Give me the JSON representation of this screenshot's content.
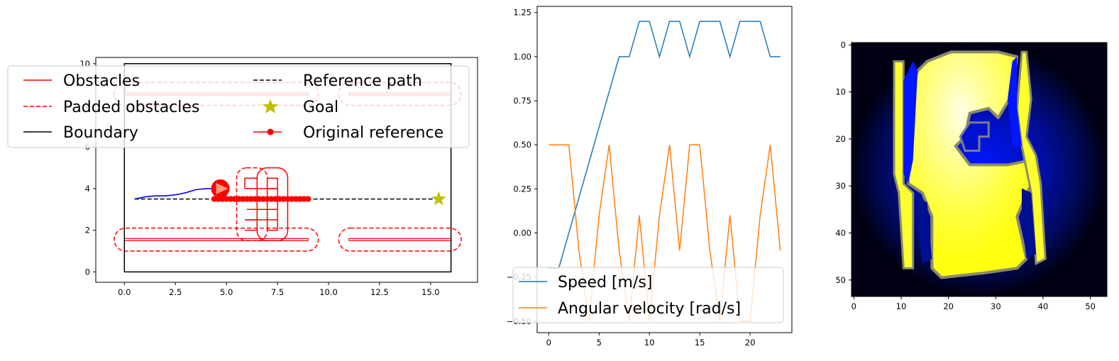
{
  "chart_data": [
    {
      "type": "line",
      "panel": "map",
      "xlim": [
        -1.4,
        17.3
      ],
      "ylim": [
        -0.5,
        10.3
      ],
      "xticks": [
        "0.0",
        "2.5",
        "5.0",
        "7.5",
        "10.0",
        "12.5",
        "15.0"
      ],
      "yticks": [
        "0",
        "2",
        "4",
        "6",
        "8",
        "10"
      ],
      "legend": [
        "Obstacles",
        "Reference path",
        "Padded obstacles",
        "Goal",
        "Boundary",
        "Original reference"
      ],
      "legend_position": "upper-left, overlapping axes",
      "colors": {
        "obstacle": "#ff0000",
        "padded": "#ff0000",
        "boundary": "#000000",
        "reference": "#000000",
        "goal": "#bfbf00",
        "trajectory": "#0000ff",
        "robot": "#ff0000"
      },
      "boundary": {
        "x": [
          0,
          16,
          16,
          0,
          0
        ],
        "y": [
          0,
          0,
          10,
          10,
          0
        ]
      },
      "walls": [
        {
          "x": [
            0,
            9
          ],
          "y": [
            1.5,
            1.6
          ]
        },
        {
          "x": [
            11,
            16
          ],
          "y": [
            1.5,
            1.6
          ]
        },
        {
          "x": [
            0,
            9
          ],
          "y": [
            8.5,
            8.6
          ]
        },
        {
          "x": [
            11,
            16
          ],
          "y": [
            8.5,
            8.6
          ]
        }
      ],
      "padded_walls": [
        {
          "x": [
            -0.5,
            9.5
          ],
          "y": [
            1.0,
            2.1
          ]
        },
        {
          "x": [
            10.5,
            16.5
          ],
          "y": [
            1.0,
            2.1
          ]
        },
        {
          "x": [
            -0.5,
            9.5
          ],
          "y": [
            8.0,
            9.1
          ]
        },
        {
          "x": [
            10.5,
            16.5
          ],
          "y": [
            8.0,
            9.1
          ]
        }
      ],
      "cross_obstacle_lines": [
        [
          [
            5.9,
            4.0
          ],
          [
            6.5,
            4.0
          ],
          [
            6.5,
            4.5
          ],
          [
            5.9,
            4.5
          ],
          [
            5.9,
            4.0
          ]
        ],
        [
          [
            6.5,
            4.0
          ],
          [
            7.5,
            4.0
          ]
        ],
        [
          [
            7.0,
            4.5
          ],
          [
            7.0,
            2.0
          ],
          [
            7.5,
            2.0
          ],
          [
            7.5,
            4.5
          ],
          [
            7.0,
            4.5
          ]
        ],
        [
          [
            5.9,
            2.5
          ],
          [
            7.0,
            2.5
          ]
        ],
        [
          [
            5.9,
            2.0
          ],
          [
            6.5,
            2.0
          ],
          [
            6.5,
            2.5
          ],
          [
            5.9,
            2.5
          ]
        ],
        [
          [
            7.0,
            3.0
          ],
          [
            7.5,
            3.0
          ]
        ],
        [
          [
            7.0,
            3.5
          ],
          [
            7.5,
            3.5
          ]
        ],
        [
          [
            7.0,
            4.0
          ],
          [
            7.5,
            4.0
          ]
        ],
        [
          [
            7.5,
            2.5
          ],
          [
            7.0,
            2.5
          ]
        ],
        [
          [
            6.0,
            3.0
          ],
          [
            7.0,
            3.0
          ]
        ],
        [
          [
            6.0,
            3.5
          ],
          [
            7.0,
            3.5
          ]
        ]
      ],
      "padded_cross": [
        {
          "x": [
            5.5,
            7.0
          ],
          "y": [
            1.5,
            5.0
          ]
        },
        {
          "x": [
            6.5,
            8.0
          ],
          "y": [
            1.5,
            5.0
          ]
        }
      ],
      "reference_path": {
        "x": [
          0.5,
          15.4
        ],
        "y": [
          3.5,
          3.5
        ]
      },
      "original_reference": {
        "x": [
          4.4,
          4.6,
          4.8,
          5.0,
          5.2,
          5.4,
          5.6,
          5.8,
          6.0,
          6.2,
          6.4,
          6.6,
          6.8,
          7.0,
          7.2,
          7.4,
          7.6,
          7.8,
          8.0,
          8.2,
          8.4,
          8.6,
          8.8,
          9.0
        ],
        "y": 3.5
      },
      "goal": {
        "x": 15.4,
        "y": 3.5
      },
      "trajectory": {
        "x": [
          0.5,
          1.0,
          1.5,
          2.0,
          2.5,
          3.0,
          3.5,
          4.0,
          4.5
        ],
        "y": [
          3.5,
          3.6,
          3.65,
          3.65,
          3.7,
          3.8,
          3.95,
          4.0,
          4.0
        ]
      },
      "robot": {
        "x": 4.7,
        "y": 4.0
      }
    },
    {
      "type": "line",
      "panel": "controls",
      "xlim": [
        -1.15,
        24.15
      ],
      "ylim": [
        -0.565,
        1.285
      ],
      "xticks": [
        0,
        5,
        10,
        15,
        20
      ],
      "yticks": [
        "−0.50",
        "−0.25",
        "0.00",
        "0.25",
        "0.50",
        "0.75",
        "1.00",
        "1.25"
      ],
      "legend_position": "lower-left",
      "series": [
        {
          "name": "Speed [m/s]",
          "color": "#1f77b4",
          "x": [
            0,
            1,
            7,
            8,
            9,
            10,
            11,
            12,
            13,
            14,
            15,
            16,
            17,
            18,
            19,
            20,
            21,
            22,
            23
          ],
          "y": [
            -0.2,
            -0.2,
            1.0,
            1.0,
            1.2,
            1.2,
            1.0,
            1.2,
            1.2,
            1.0,
            1.2,
            1.2,
            1.2,
            1.0,
            1.2,
            1.2,
            1.2,
            1.0,
            1.0
          ]
        },
        {
          "name": "Angular velocity [rad/s]",
          "color": "#ff7f0e",
          "x": [
            0,
            1,
            2,
            3,
            4,
            5,
            6,
            7,
            8,
            9,
            10,
            11,
            12,
            13,
            14,
            15,
            16,
            17,
            18,
            19,
            20,
            21,
            22,
            23
          ],
          "y": [
            0.5,
            0.5,
            0.5,
            -0.1,
            -0.5,
            0.1,
            0.5,
            -0.1,
            -0.5,
            0.1,
            -0.5,
            0.1,
            0.5,
            -0.1,
            0.5,
            0.5,
            -0.1,
            -0.5,
            0.1,
            -0.5,
            -0.5,
            0.1,
            0.5,
            -0.1
          ]
        }
      ]
    },
    {
      "type": "heatmap",
      "panel": "costmap",
      "shape": [
        54,
        54
      ],
      "xticks": [
        0,
        10,
        20,
        30,
        40,
        50
      ],
      "yticks": [
        0,
        10,
        20,
        30,
        40,
        50
      ],
      "colors": {
        "background_dark": "#000010",
        "blue_glow": "#0010ff",
        "free": "#ffff30",
        "free_light": "#ffffd0",
        "edge_gray": "#8a8a6a"
      }
    }
  ]
}
